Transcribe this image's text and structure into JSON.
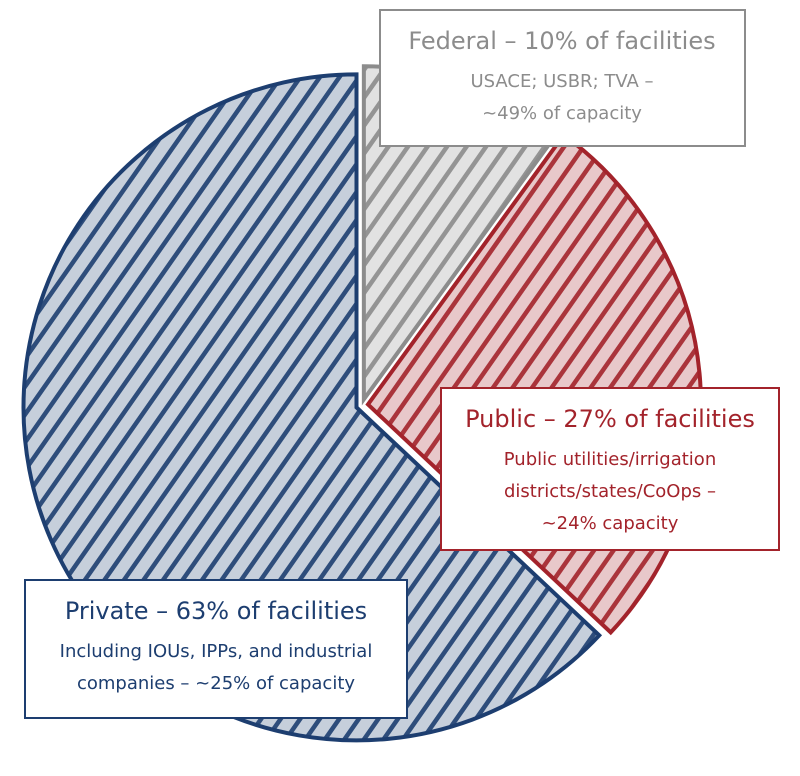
{
  "chart_data": {
    "type": "pie",
    "values": [
      10,
      27,
      63
    ],
    "value_labels": [
      "Federal – 10% of facilities",
      "Public – 27% of facilities",
      "Private – 63% of facilities"
    ],
    "annotations": [
      [
        "USACE; USBR; TVA –",
        "~49% of capacity"
      ],
      [
        "Public utilities/irrigation",
        "districts/states/CoOps –",
        "~24% capacity"
      ],
      [
        "Including IOUs, IPPs, and industrial",
        "companies – ~25% of capacity"
      ]
    ],
    "colors": [
      "#8c8c8c",
      "#a3232b",
      "#1d3e70"
    ]
  }
}
